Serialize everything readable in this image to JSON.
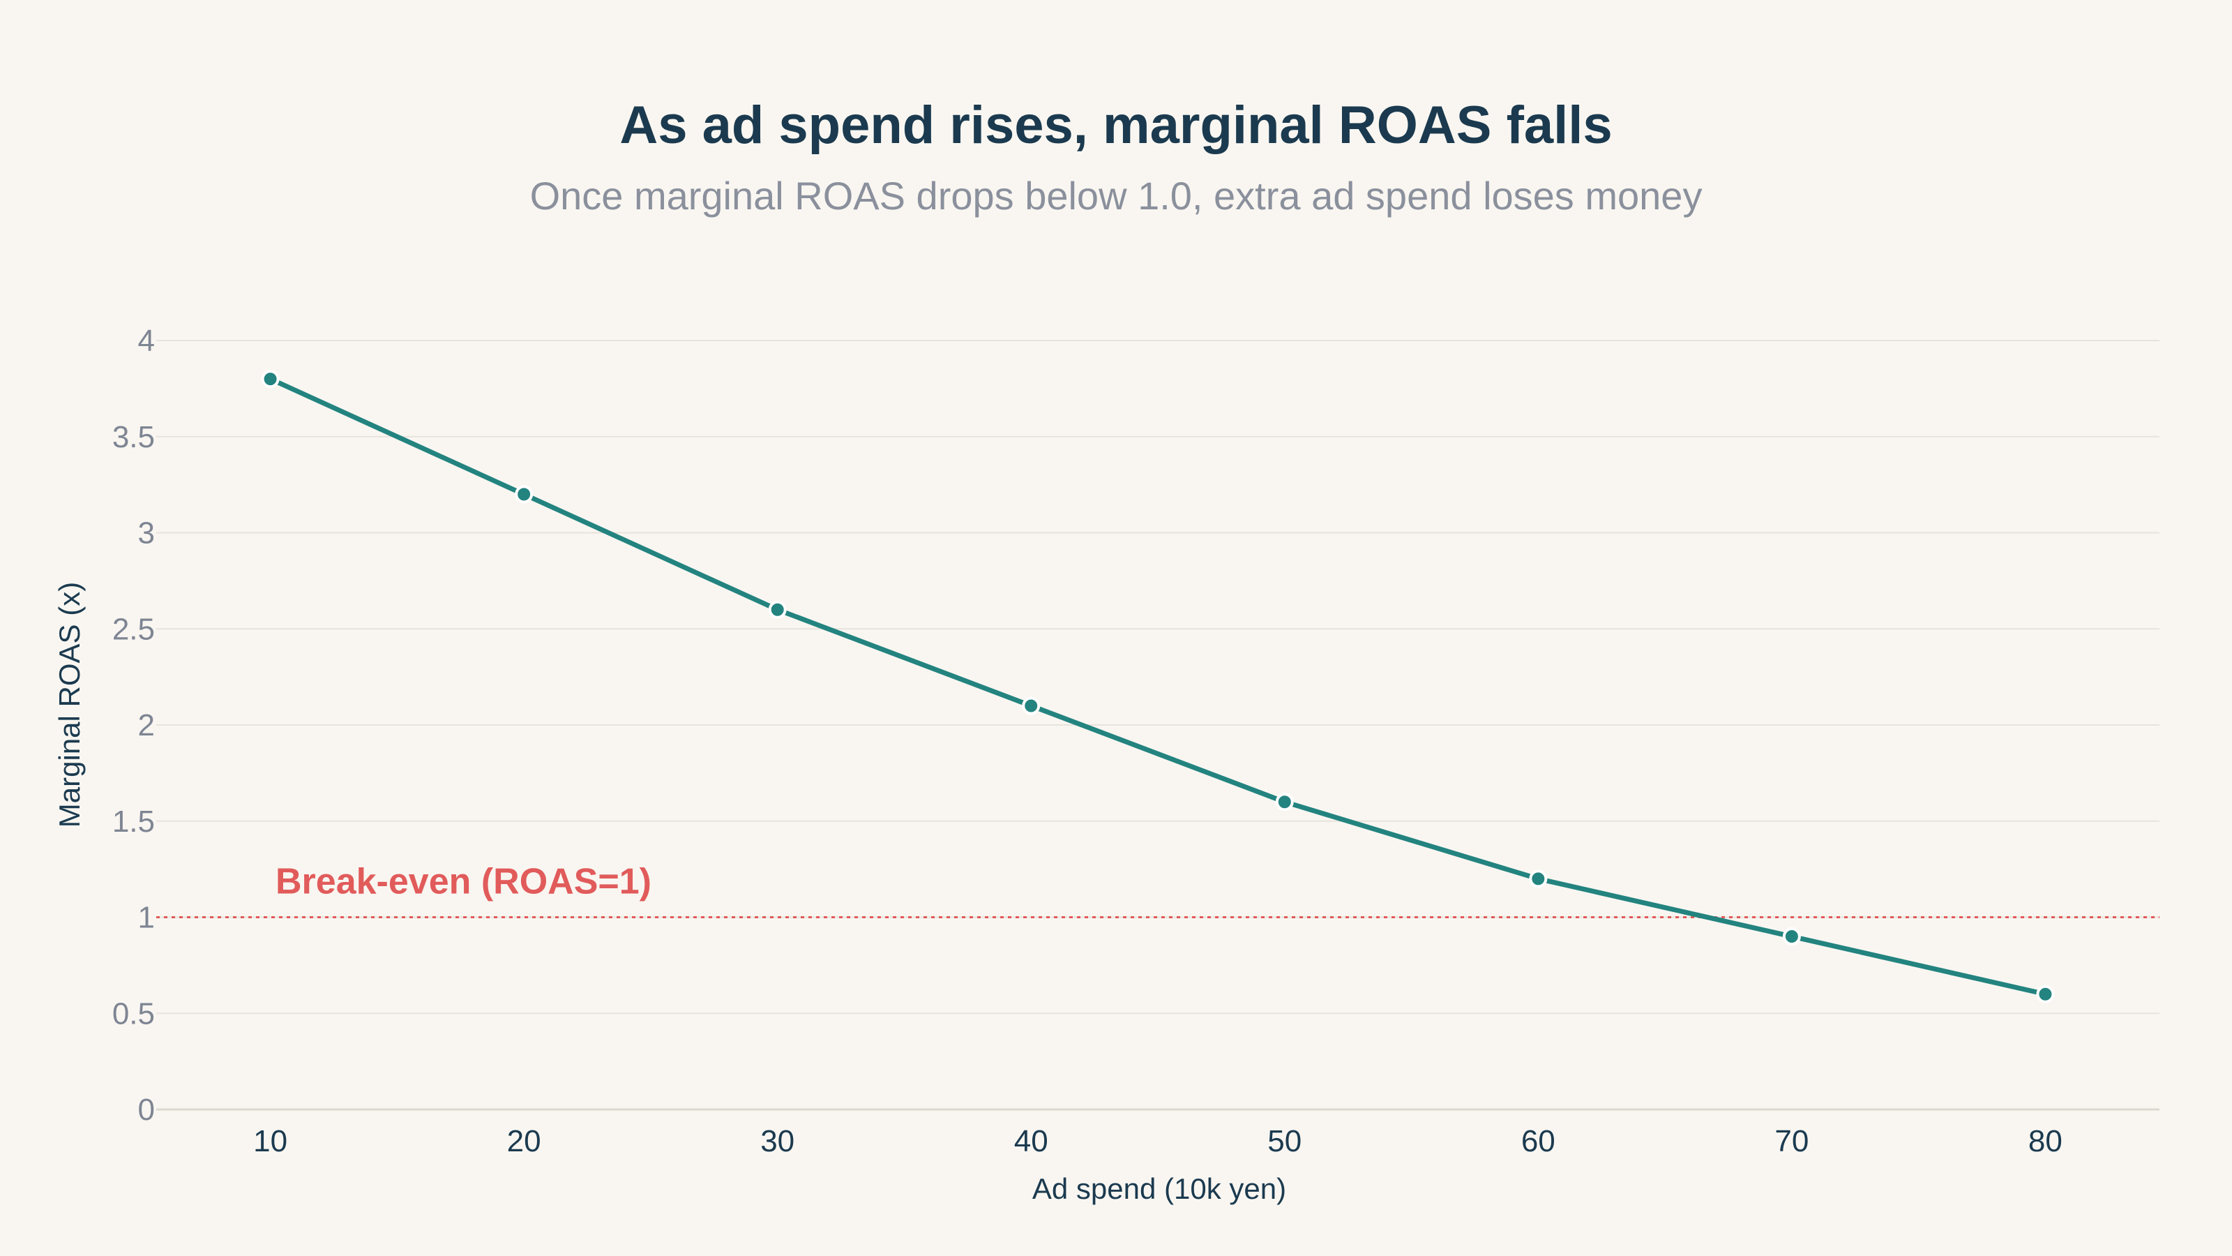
{
  "chart_data": {
    "type": "line",
    "title": "As ad spend rises, marginal ROAS falls",
    "subtitle": "Once marginal ROAS drops below 1.0, extra ad spend loses money",
    "xlabel": "Ad spend (10k yen)",
    "ylabel": "Marginal ROAS (x)",
    "x": [
      10,
      20,
      30,
      40,
      50,
      60,
      70,
      80
    ],
    "series": [
      {
        "values": [
          3.8,
          3.2,
          2.6,
          2.1,
          1.6,
          1.2,
          0.9,
          0.6
        ],
        "color": "#23837f"
      }
    ],
    "xlim": [
      5.5,
      84.5
    ],
    "ylim": [
      0,
      4
    ],
    "xticks": [
      "10",
      "20",
      "30",
      "40",
      "50",
      "60",
      "70",
      "80"
    ],
    "yticks": [
      "0",
      "0.5",
      "1",
      "1.5",
      "2",
      "2.5",
      "3",
      "3.5",
      "4"
    ],
    "grid": true,
    "reference_line": {
      "y": 1,
      "label": "Break-even (ROAS=1)",
      "color": "#e15b5b"
    }
  }
}
